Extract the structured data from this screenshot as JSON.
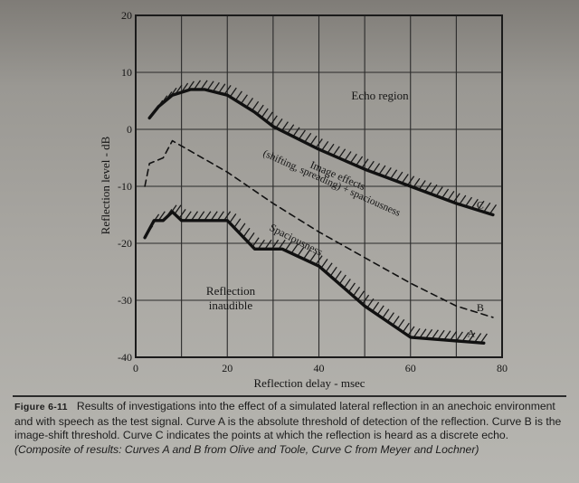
{
  "chart_data": {
    "type": "line",
    "title": "",
    "xlabel": "Reflection delay - msec",
    "ylabel": "Reflection level - dB",
    "xlim": [
      0,
      80
    ],
    "ylim": [
      -40,
      20
    ],
    "xticks": [
      0,
      20,
      40,
      60,
      80
    ],
    "yticks": [
      -40,
      -30,
      -20,
      -10,
      0,
      10,
      20
    ],
    "grid": true,
    "series": [
      {
        "name": "A",
        "style": "solid-hatched",
        "x": [
          2,
          4,
          6,
          8,
          10,
          20,
          26,
          32,
          40,
          50,
          60,
          76
        ],
        "y": [
          -19,
          -16,
          -16,
          -14.5,
          -16,
          -16,
          -21,
          -21,
          -24,
          -31,
          -36.5,
          -37.5
        ]
      },
      {
        "name": "B",
        "style": "dashed",
        "x": [
          2,
          3,
          6,
          8,
          20,
          30,
          40,
          50,
          60,
          70,
          78
        ],
        "y": [
          -10,
          -6,
          -5,
          -2,
          -7.5,
          -13,
          -18,
          -22.5,
          -27,
          -31,
          -33
        ]
      },
      {
        "name": "C",
        "style": "solid-hatched",
        "x": [
          3,
          5,
          8,
          12,
          15,
          20,
          26,
          30,
          40,
          50,
          60,
          70,
          78
        ],
        "y": [
          2,
          4,
          6,
          7,
          7,
          6,
          3,
          0.5,
          -3.5,
          -7,
          -10,
          -13,
          -15
        ]
      }
    ],
    "annotations": [
      "Echo region",
      "Image effects",
      "(shifting, spreading) + spaciousness",
      "Spaciousness",
      "Reflection",
      "inaudible"
    ]
  },
  "caption": {
    "label": "Figure 6-11",
    "text": "Results of investigations into the effect of a simulated lateral reflection in an anechoic environment and with speech as the test signal. Curve A is the absolute threshold of detection of the reflection. Curve B is the image-shift threshold. Curve C indicates the points at which the reflection is heard as a discrete echo.",
    "source": "(Composite of results: Curves A and B from Olive and Toole, Curve C from Meyer and Lochner)"
  }
}
